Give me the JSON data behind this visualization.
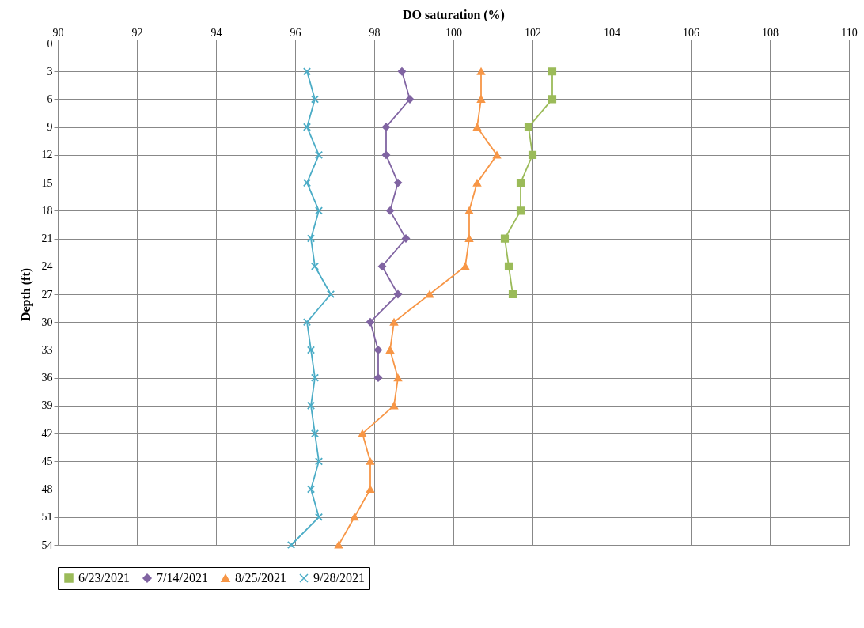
{
  "chart_data": {
    "type": "line",
    "xlabel": "DO saturation (%)",
    "ylabel": "Depth (ft)",
    "xlim": [
      90,
      110
    ],
    "xticks": [
      90,
      92,
      94,
      96,
      98,
      100,
      102,
      104,
      106,
      108,
      110
    ],
    "ylim": [
      54,
      0
    ],
    "yticks": [
      0,
      3,
      6,
      9,
      12,
      15,
      18,
      21,
      24,
      27,
      30,
      33,
      36,
      39,
      42,
      45,
      48,
      51,
      54
    ],
    "grid": true,
    "legend": "bottom",
    "series": [
      {
        "name": "6/23/2021",
        "color": "#9bbb59",
        "marker": "square",
        "x": [
          102.5,
          102.5,
          101.9,
          102.0,
          101.7,
          101.7,
          101.3,
          101.4,
          101.5
        ],
        "values": [
          3,
          6,
          9,
          12,
          15,
          18,
          21,
          24,
          27
        ]
      },
      {
        "name": "7/14/2021",
        "color": "#8064a2",
        "marker": "diamond",
        "x": [
          98.7,
          98.9,
          98.3,
          98.3,
          98.6,
          98.4,
          98.8,
          98.2,
          98.6,
          97.9,
          98.1,
          98.1
        ],
        "values": [
          3,
          6,
          9,
          12,
          15,
          18,
          21,
          24,
          27,
          30,
          33,
          36
        ]
      },
      {
        "name": "8/25/2021",
        "color": "#f79646",
        "marker": "triangle",
        "x": [
          100.7,
          100.7,
          100.6,
          101.1,
          100.6,
          100.4,
          100.4,
          100.3,
          99.4,
          98.5,
          98.4,
          98.6,
          98.5,
          97.7,
          97.9,
          97.9,
          97.5,
          97.1
        ],
        "values": [
          3,
          6,
          9,
          12,
          15,
          18,
          21,
          24,
          27,
          30,
          33,
          36,
          39,
          42,
          45,
          48,
          51,
          54
        ]
      },
      {
        "name": "9/28/2021",
        "color": "#4bacc6",
        "marker": "cross",
        "x": [
          96.3,
          96.5,
          96.3,
          96.6,
          96.3,
          96.6,
          96.4,
          96.5,
          96.9,
          96.3,
          96.4,
          96.5,
          96.4,
          96.5,
          96.6,
          96.4,
          96.6,
          95.9
        ],
        "values": [
          3,
          6,
          9,
          12,
          15,
          18,
          21,
          24,
          27,
          30,
          33,
          36,
          39,
          42,
          45,
          48,
          51,
          54
        ]
      }
    ]
  }
}
